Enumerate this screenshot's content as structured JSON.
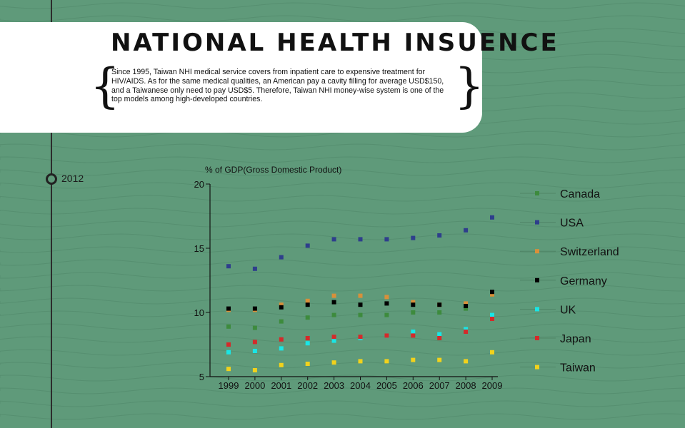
{
  "header": {
    "title": "NATIONAL HEALTH INSUENCE",
    "description": "Since 1995, Taiwan NHI medical service covers from inpatient care to expensive treatment for HIV/AIDS. As for the same medical qualities, an American pay a cavity filling for average USD$150, and a Taiwanese only need to pay USD$5. Therefore, Taiwan NHI money-wise system is one of the top models among high-developed countries."
  },
  "timeline": {
    "year": "2012"
  },
  "colors": {
    "background": "#5f9a7a",
    "Canada": "#3d8b3d",
    "USA": "#2e3e8c",
    "Switzerland": "#d8903a",
    "Germany": "#000000",
    "UK": "#19e6e6",
    "Japan": "#d42a2a",
    "Taiwan": "#f2d21b"
  },
  "chart_data": {
    "type": "scatter",
    "ylabel": "% of GDP(Gross Domestic Product)",
    "xlabel": "",
    "ylim": [
      5,
      20
    ],
    "yticks": [
      "5",
      "10",
      "15",
      "20"
    ],
    "categories": [
      "1999",
      "2000",
      "2001",
      "2002",
      "2003",
      "2004",
      "2005",
      "2006",
      "2007",
      "2008",
      "2009"
    ],
    "legend_position": "right",
    "series": [
      {
        "name": "Canada",
        "values": [
          8.9,
          8.8,
          9.3,
          9.6,
          9.8,
          9.8,
          9.8,
          10.0,
          10.0,
          10.3,
          11.4
        ]
      },
      {
        "name": "USA",
        "values": [
          13.6,
          13.4,
          14.3,
          15.2,
          15.7,
          15.7,
          15.7,
          15.8,
          16.0,
          16.4,
          17.4
        ]
      },
      {
        "name": "Switzerland",
        "values": [
          10.2,
          10.2,
          10.6,
          10.9,
          11.3,
          11.3,
          11.2,
          10.8,
          10.6,
          10.7,
          11.4
        ]
      },
      {
        "name": "Germany",
        "values": [
          10.3,
          10.3,
          10.4,
          10.6,
          10.8,
          10.6,
          10.7,
          10.6,
          10.6,
          10.5,
          11.6
        ]
      },
      {
        "name": "UK",
        "values": [
          6.9,
          7.0,
          7.2,
          7.6,
          7.8,
          8.0,
          8.2,
          8.5,
          8.3,
          8.7,
          9.8
        ]
      },
      {
        "name": "Japan",
        "values": [
          7.5,
          7.7,
          7.9,
          8.0,
          8.1,
          8.1,
          8.2,
          8.2,
          8.0,
          8.5,
          9.5
        ]
      },
      {
        "name": "Taiwan",
        "values": [
          5.6,
          5.5,
          5.9,
          6.0,
          6.1,
          6.2,
          6.2,
          6.3,
          6.3,
          6.2,
          6.9
        ]
      }
    ]
  }
}
